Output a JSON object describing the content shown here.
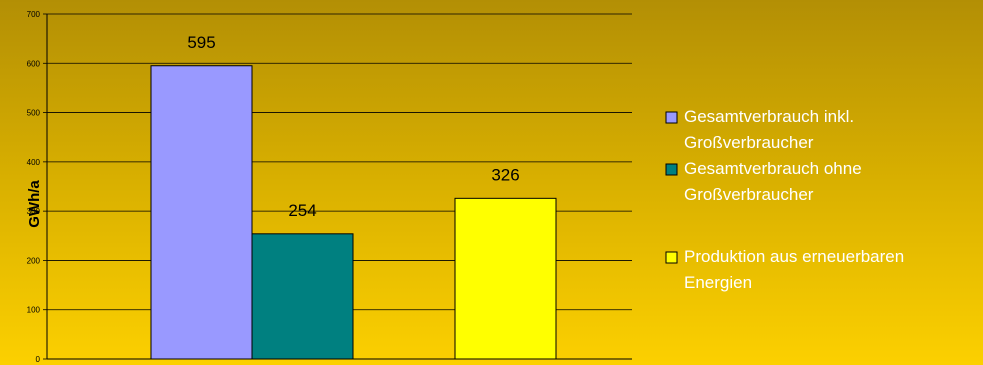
{
  "chart_data": {
    "type": "bar",
    "ylabel": "GWh/a",
    "ylim": [
      0,
      700
    ],
    "yticks": [
      0,
      100,
      200,
      300,
      400,
      500,
      600,
      700
    ],
    "grid": true,
    "legend_position": "right",
    "series": [
      {
        "name": "Gesamtverbrauch inkl. Großverbraucher",
        "name_lines": [
          "Gesamtverbrauch inkl.",
          "Großverbraucher"
        ],
        "value": 595,
        "label": "595",
        "color": "#9999ff"
      },
      {
        "name": "Gesamtverbrauch ohne Großverbraucher",
        "name_lines": [
          "Gesamtverbrauch ohne",
          "Großverbraucher"
        ],
        "value": 254,
        "label": "254",
        "color": "#008080"
      },
      {
        "name": "Produktion aus erneuerbaren Energien",
        "name_lines": [
          "Produktion aus erneuerbaren",
          "Energien"
        ],
        "value": 326,
        "label": "326",
        "color": "#ffff00"
      }
    ]
  }
}
